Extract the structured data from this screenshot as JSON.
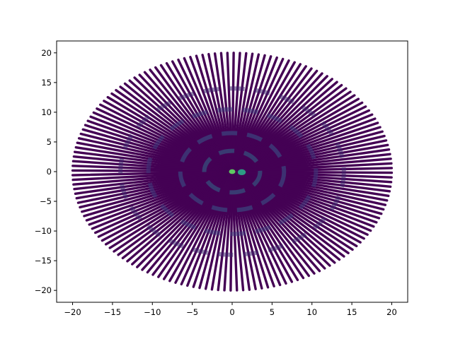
{
  "chart_data": {
    "type": "heatmap",
    "title": "",
    "xlabel": "",
    "ylabel": "",
    "xlim": [
      -22,
      22
    ],
    "ylim": [
      -22,
      22
    ],
    "xticks": [
      -20,
      -15,
      -10,
      -5,
      0,
      5,
      10,
      15,
      20
    ],
    "yticks": [
      -20,
      -15,
      -10,
      -5,
      0,
      5,
      10,
      15,
      20
    ],
    "xtick_labels": [
      "−20",
      "−15",
      "−10",
      "−5",
      "0",
      "5",
      "10",
      "15",
      "20"
    ],
    "ytick_labels": [
      "−20",
      "−15",
      "−10",
      "−5",
      "0",
      "5",
      "10",
      "15",
      "20"
    ],
    "grid": false,
    "radius_max": 20,
    "spoke_count": 160,
    "colormap": [
      "#440154",
      "#3b528b",
      "#21918c",
      "#5ec962",
      "#fde725"
    ],
    "background_color": "#440154",
    "features": [
      {
        "kind": "ring",
        "radius": 3.5,
        "intensity": 0.35
      },
      {
        "kind": "ring",
        "radius": 6.5,
        "intensity": 0.28
      },
      {
        "kind": "ring",
        "radius": 10.5,
        "intensity": 0.18
      },
      {
        "kind": "ring",
        "radius": 14.0,
        "intensity": 0.12
      },
      {
        "kind": "spot",
        "x": 0.0,
        "y": 0.0,
        "radius": 0.4,
        "intensity": 0.75
      },
      {
        "kind": "spot",
        "x": 1.2,
        "y": -0.1,
        "radius": 0.5,
        "intensity": 0.55
      }
    ]
  }
}
